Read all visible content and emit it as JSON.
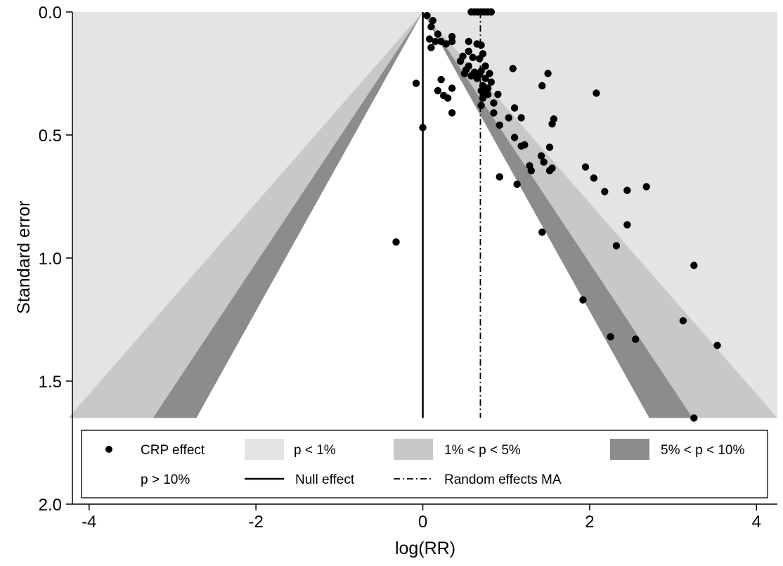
{
  "chart_data": {
    "type": "scatter",
    "subtype": "contour-enhanced funnel plot",
    "xlabel": "log(RR)",
    "ylabel": "Standard error",
    "xlim": [
      -4.2,
      4.25
    ],
    "ylim": [
      0,
      2.0
    ],
    "y_reversed": true,
    "x_ticks": [
      -4,
      -2,
      0,
      2,
      4
    ],
    "x_tick_labels": [
      "-4",
      "-2",
      "0",
      "2",
      "4"
    ],
    "y_ticks": [
      0,
      0.5,
      1.0,
      1.5,
      2.0
    ],
    "y_tick_labels": [
      "0.0",
      "0.5",
      "1.0",
      "1.5",
      "2.0"
    ],
    "contour_se_max": 1.65,
    "null_effect": 0,
    "random_effects_estimate": 0.69,
    "colors": {
      "p_lt_1": "#e4e4e4",
      "p_1_5": "#c8c8c8",
      "p_5_10": "#8c8c8c",
      "p_gt_10": "#ffffff",
      "points": "#000000"
    },
    "legend": {
      "placement": "bottom-inside",
      "items": [
        {
          "key": "points",
          "label": "CRP effect"
        },
        {
          "key": "p_lt_1",
          "label": "p < 1%"
        },
        {
          "key": "p_1_5",
          "label": "1% < p < 5%"
        },
        {
          "key": "p_5_10",
          "label": "5% < p < 10%"
        },
        {
          "key": "p_gt_10",
          "label": "p > 10%"
        },
        {
          "key": "null_line",
          "label": "Null effect"
        },
        {
          "key": "ma_line",
          "label": "Random effects MA"
        }
      ]
    },
    "points": [
      {
        "x": 0.05,
        "y": 0.015
      },
      {
        "x": 0.12,
        "y": 0.035
      },
      {
        "x": 0.1,
        "y": 0.06
      },
      {
        "x": 0.18,
        "y": 0.09
      },
      {
        "x": 0.08,
        "y": 0.11
      },
      {
        "x": 0.15,
        "y": 0.12
      },
      {
        "x": 0.22,
        "y": 0.12
      },
      {
        "x": 0.28,
        "y": 0.13
      },
      {
        "x": 0.35,
        "y": 0.1
      },
      {
        "x": 0.35,
        "y": 0.12
      },
      {
        "x": 0.55,
        "y": 0.12
      },
      {
        "x": 0.65,
        "y": 0.13
      },
      {
        "x": 0.7,
        "y": 0.135
      },
      {
        "x": 0.1,
        "y": 0.145
      },
      {
        "x": 0.55,
        "y": 0.16
      },
      {
        "x": 0.72,
        "y": 0.17
      },
      {
        "x": 0.48,
        "y": 0.18
      },
      {
        "x": 0.6,
        "y": 0.185
      },
      {
        "x": 0.68,
        "y": 0.19
      },
      {
        "x": 0.45,
        "y": 0.2
      },
      {
        "x": 0.55,
        "y": 0.22
      },
      {
        "x": 0.75,
        "y": 0.22
      },
      {
        "x": 0.52,
        "y": 0.235
      },
      {
        "x": 0.7,
        "y": 0.24
      },
      {
        "x": 0.62,
        "y": 0.245
      },
      {
        "x": 0.5,
        "y": 0.25
      },
      {
        "x": 0.58,
        "y": 0.26
      },
      {
        "x": 0.68,
        "y": 0.255
      },
      {
        "x": 0.8,
        "y": 0.25
      },
      {
        "x": 0.65,
        "y": 0.27
      },
      {
        "x": 0.75,
        "y": 0.27
      },
      {
        "x": 0.82,
        "y": 0.285
      },
      {
        "x": 0.72,
        "y": 0.3
      },
      {
        "x": 0.78,
        "y": 0.31
      },
      {
        "x": 0.7,
        "y": 0.32
      },
      {
        "x": 0.74,
        "y": 0.33
      },
      {
        "x": 0.78,
        "y": 0.335
      },
      {
        "x": 0.9,
        "y": 0.335
      },
      {
        "x": 0.72,
        "y": 0.35
      },
      {
        "x": 0.85,
        "y": 0.37
      },
      {
        "x": 0.7,
        "y": 0.38
      },
      {
        "x": 0.85,
        "y": 0.41
      },
      {
        "x": 0.92,
        "y": 0.46
      },
      {
        "x": 1.03,
        "y": 0.43
      },
      {
        "x": 1.1,
        "y": 0.39
      },
      {
        "x": 1.18,
        "y": 0.43
      },
      {
        "x": 1.08,
        "y": 0.23
      },
      {
        "x": 1.5,
        "y": 0.25
      },
      {
        "x": 1.43,
        "y": 0.3
      },
      {
        "x": 2.08,
        "y": 0.33
      },
      {
        "x": 1.57,
        "y": 0.435
      },
      {
        "x": 1.55,
        "y": 0.455
      },
      {
        "x": 1.1,
        "y": 0.51
      },
      {
        "x": 1.22,
        "y": 0.54
      },
      {
        "x": 1.18,
        "y": 0.545
      },
      {
        "x": 1.52,
        "y": 0.55
      },
      {
        "x": 1.42,
        "y": 0.585
      },
      {
        "x": 1.45,
        "y": 0.61
      },
      {
        "x": 1.28,
        "y": 0.625
      },
      {
        "x": 1.3,
        "y": 0.645
      },
      {
        "x": 1.55,
        "y": 0.635
      },
      {
        "x": 1.52,
        "y": 0.645
      },
      {
        "x": 1.95,
        "y": 0.63
      },
      {
        "x": 2.05,
        "y": 0.675
      },
      {
        "x": 2.18,
        "y": 0.73
      },
      {
        "x": 2.45,
        "y": 0.725
      },
      {
        "x": 2.68,
        "y": 0.71
      },
      {
        "x": 0.92,
        "y": 0.67
      },
      {
        "x": 1.13,
        "y": 0.7
      },
      {
        "x": 1.43,
        "y": 0.895
      },
      {
        "x": 2.45,
        "y": 0.865
      },
      {
        "x": 2.32,
        "y": 0.95
      },
      {
        "x": 1.92,
        "y": 1.17
      },
      {
        "x": 2.25,
        "y": 1.32
      },
      {
        "x": 2.55,
        "y": 1.33
      },
      {
        "x": 3.25,
        "y": 1.03
      },
      {
        "x": 3.12,
        "y": 1.255
      },
      {
        "x": 3.53,
        "y": 1.355
      },
      {
        "x": 3.25,
        "y": 1.65
      },
      {
        "x": -0.08,
        "y": 0.29
      },
      {
        "x": 0.0,
        "y": 0.47
      },
      {
        "x": -0.32,
        "y": 0.935
      },
      {
        "x": 0.22,
        "y": 0.275
      },
      {
        "x": 0.18,
        "y": 0.32
      },
      {
        "x": 0.25,
        "y": 0.34
      },
      {
        "x": 0.3,
        "y": 0.35
      },
      {
        "x": 0.35,
        "y": 0.31
      },
      {
        "x": 0.35,
        "y": 0.41
      },
      {
        "x": 0.58,
        "y": 0.0
      },
      {
        "x": 0.62,
        "y": 0.0
      },
      {
        "x": 0.66,
        "y": 0.0
      },
      {
        "x": 0.7,
        "y": 0.0
      },
      {
        "x": 0.74,
        "y": 0.0
      },
      {
        "x": 0.78,
        "y": 0.0
      },
      {
        "x": 0.82,
        "y": 0.0
      }
    ]
  }
}
